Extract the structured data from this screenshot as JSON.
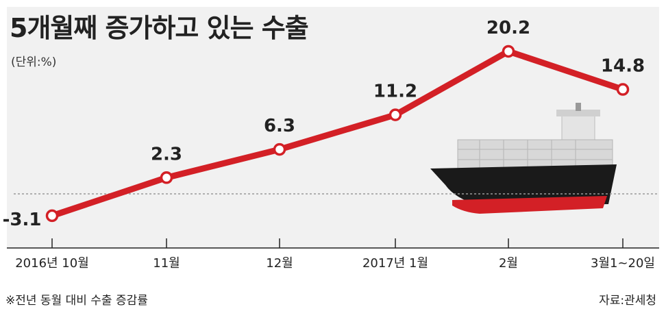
{
  "title": "5개월째 증가하고 있는 수출",
  "unit_label": "(단위:%)",
  "footnote": "※전년 동월 대비 수출 증감률",
  "source": "자료:관세청",
  "colors": {
    "line": "#d32026",
    "marker_fill": "#ffffff",
    "background": "#f1f1f1",
    "axis": "#222222",
    "zero_line": "#999999",
    "ship_hull": "#1a1a1a",
    "ship_bottom": "#d32026",
    "ship_cargo": "#d8d8d8"
  },
  "chart_data": {
    "type": "line",
    "categories": [
      "2016년 10월",
      "11월",
      "12월",
      "2017년 1월",
      "2월",
      "3월1~20일"
    ],
    "values": [
      -3.1,
      2.3,
      6.3,
      11.2,
      20.2,
      14.8
    ],
    "value_labels": [
      "-3.1",
      "2.3",
      "6.3",
      "11.2",
      "20.2",
      "14.8"
    ],
    "title": "5개월째 증가하고 있는 수출",
    "xlabel": "",
    "ylabel": "",
    "unit": "(단위:%)",
    "ylim": [
      -5,
      22
    ],
    "zero_line": true,
    "grid": false,
    "legend": "none",
    "decoration": "cargo-ship-icon"
  }
}
